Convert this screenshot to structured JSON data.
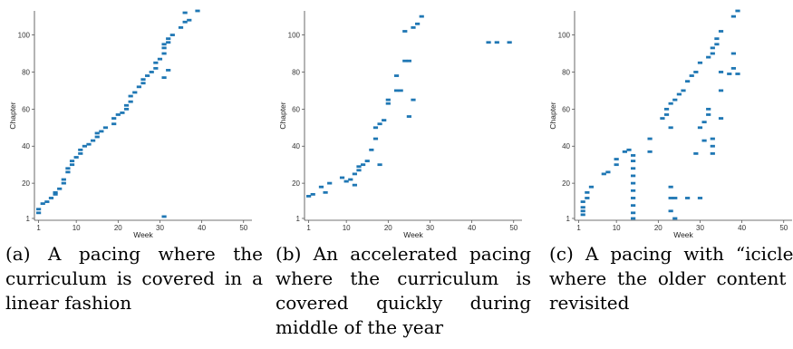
{
  "colors": {
    "mark": "#1f77b4",
    "axis": "#444444",
    "background": "#ffffff"
  },
  "chart_data": [
    {
      "type": "scatter",
      "title": "",
      "xlabel": "Week",
      "ylabel": "Chapter",
      "xlim": [
        0,
        52
      ],
      "ylim": [
        0,
        113
      ],
      "xticks": [
        1,
        10,
        20,
        30,
        40,
        50
      ],
      "yticks": [
        1,
        20,
        40,
        60,
        80,
        100
      ],
      "grid": false,
      "points": [
        [
          1,
          4
        ],
        [
          1,
          6
        ],
        [
          2,
          9
        ],
        [
          3,
          10
        ],
        [
          4,
          12
        ],
        [
          5,
          14
        ],
        [
          5,
          15
        ],
        [
          6,
          17
        ],
        [
          7,
          20
        ],
        [
          7,
          22
        ],
        [
          8,
          26
        ],
        [
          8,
          28
        ],
        [
          9,
          30
        ],
        [
          9,
          32
        ],
        [
          10,
          34
        ],
        [
          11,
          36
        ],
        [
          11,
          38
        ],
        [
          12,
          40
        ],
        [
          13,
          41
        ],
        [
          14,
          43
        ],
        [
          15,
          45
        ],
        [
          15,
          47
        ],
        [
          16,
          48
        ],
        [
          17,
          50
        ],
        [
          19,
          52
        ],
        [
          19,
          55
        ],
        [
          20,
          57
        ],
        [
          21,
          58
        ],
        [
          22,
          60
        ],
        [
          22,
          62
        ],
        [
          23,
          64
        ],
        [
          23,
          67
        ],
        [
          24,
          69
        ],
        [
          25,
          72
        ],
        [
          26,
          74
        ],
        [
          26,
          76
        ],
        [
          27,
          78
        ],
        [
          28,
          80
        ],
        [
          29,
          82
        ],
        [
          29,
          85
        ],
        [
          30,
          87
        ],
        [
          31,
          90
        ],
        [
          31,
          93
        ],
        [
          31,
          95
        ],
        [
          32,
          96
        ],
        [
          32,
          98
        ],
        [
          33,
          100
        ],
        [
          35,
          104
        ],
        [
          36,
          107
        ],
        [
          37,
          108
        ],
        [
          36,
          112
        ],
        [
          39,
          113
        ],
        [
          31,
          77
        ],
        [
          32,
          81
        ],
        [
          31,
          2
        ]
      ],
      "caption_letter": "(a)",
      "caption": "A pacing where the curriculum is covered in a linear fashion"
    },
    {
      "type": "scatter",
      "title": "",
      "xlabel": "Week",
      "ylabel": "Chapter",
      "xlim": [
        0,
        52
      ],
      "ylim": [
        0,
        113
      ],
      "xticks": [
        1,
        10,
        20,
        30,
        40,
        50
      ],
      "yticks": [
        1,
        20,
        40,
        60,
        80,
        100
      ],
      "grid": false,
      "points": [
        [
          1,
          13
        ],
        [
          2,
          14
        ],
        [
          4,
          18
        ],
        [
          5,
          15
        ],
        [
          6,
          20
        ],
        [
          9,
          23
        ],
        [
          10,
          21
        ],
        [
          11,
          22
        ],
        [
          12,
          19
        ],
        [
          12,
          25
        ],
        [
          13,
          27
        ],
        [
          13,
          29
        ],
        [
          14,
          30
        ],
        [
          15,
          32
        ],
        [
          16,
          38
        ],
        [
          17,
          44
        ],
        [
          17,
          50
        ],
        [
          18,
          52
        ],
        [
          18,
          30
        ],
        [
          19,
          54
        ],
        [
          20,
          63
        ],
        [
          20,
          65
        ],
        [
          22,
          70
        ],
        [
          23,
          70
        ],
        [
          22,
          78
        ],
        [
          24,
          86
        ],
        [
          25,
          86
        ],
        [
          25,
          56
        ],
        [
          26,
          65
        ],
        [
          24,
          102
        ],
        [
          26,
          104
        ],
        [
          27,
          106
        ],
        [
          28,
          110
        ],
        [
          44,
          96
        ],
        [
          46,
          96
        ],
        [
          49,
          96
        ]
      ],
      "caption_letter": "(b)",
      "caption": "An accelerated pacing where the curriculum is covered quickly during middle of the year"
    },
    {
      "type": "scatter",
      "title": "",
      "xlabel": "Week",
      "ylabel": "Chapter",
      "xlim": [
        0,
        52
      ],
      "ylim": [
        0,
        113
      ],
      "xticks": [
        1,
        10,
        20,
        30,
        40,
        50
      ],
      "yticks": [
        1,
        20,
        40,
        60,
        80,
        100
      ],
      "grid": false,
      "points": [
        [
          2,
          3
        ],
        [
          2,
          5
        ],
        [
          2,
          7
        ],
        [
          2,
          10
        ],
        [
          3,
          12
        ],
        [
          3,
          15
        ],
        [
          4,
          18
        ],
        [
          7,
          25
        ],
        [
          8,
          26
        ],
        [
          10,
          30
        ],
        [
          10,
          33
        ],
        [
          12,
          37
        ],
        [
          13,
          38
        ],
        [
          14,
          1
        ],
        [
          14,
          4
        ],
        [
          14,
          8
        ],
        [
          14,
          12
        ],
        [
          14,
          16
        ],
        [
          14,
          20
        ],
        [
          14,
          24
        ],
        [
          14,
          28
        ],
        [
          14,
          32
        ],
        [
          14,
          35
        ],
        [
          18,
          37
        ],
        [
          18,
          44
        ],
        [
          21,
          55
        ],
        [
          22,
          57
        ],
        [
          22,
          60
        ],
        [
          23,
          50
        ],
        [
          23,
          63
        ],
        [
          24,
          65
        ],
        [
          25,
          68
        ],
        [
          26,
          70
        ],
        [
          27,
          75
        ],
        [
          28,
          78
        ],
        [
          29,
          80
        ],
        [
          30,
          85
        ],
        [
          31,
          53
        ],
        [
          32,
          57
        ],
        [
          32,
          60
        ],
        [
          32,
          88
        ],
        [
          33,
          90
        ],
        [
          33,
          93
        ],
        [
          34,
          95
        ],
        [
          34,
          98
        ],
        [
          35,
          102
        ],
        [
          35,
          70
        ],
        [
          35,
          80
        ],
        [
          35,
          55
        ],
        [
          33,
          44
        ],
        [
          33,
          40
        ],
        [
          33,
          36
        ],
        [
          30,
          50
        ],
        [
          31,
          43
        ],
        [
          29,
          36
        ],
        [
          24,
          12
        ],
        [
          23,
          12
        ],
        [
          23,
          5
        ],
        [
          24,
          1
        ],
        [
          23,
          18
        ],
        [
          27,
          12
        ],
        [
          30,
          12
        ],
        [
          37,
          79
        ],
        [
          38,
          82
        ],
        [
          38,
          90
        ],
        [
          38,
          110
        ],
        [
          39,
          113
        ],
        [
          39,
          79
        ]
      ],
      "caption_letter": "(c)",
      "caption": "A pacing with “icicles” where the older content is revisited"
    }
  ]
}
